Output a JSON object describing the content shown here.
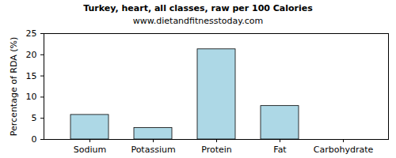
{
  "chart_data": {
    "type": "bar",
    "title": "Turkey, heart, all classes, raw per 100 Calories",
    "subtitle": "www.dietandfitnesstoday.com",
    "y_label": "Percentage of RDA (%)",
    "categories": [
      "Sodium",
      "Potassium",
      "Protein",
      "Fat",
      "Carbohydrate"
    ],
    "values": [
      5.8,
      2.7,
      21.3,
      7.9,
      0
    ],
    "color": "#add8e6",
    "ylim": [
      0,
      25
    ],
    "yticks": [
      0,
      5,
      10,
      15,
      20,
      25
    ],
    "grid": false
  }
}
